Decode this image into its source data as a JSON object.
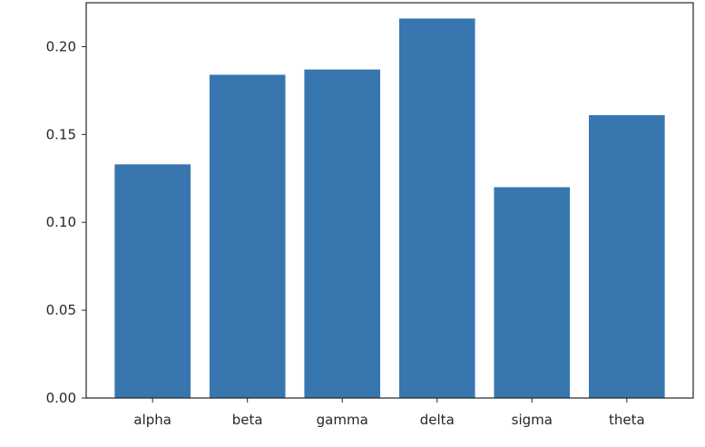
{
  "chart_data": {
    "type": "bar",
    "categories": [
      "alpha",
      "beta",
      "gamma",
      "delta",
      "sigma",
      "theta"
    ],
    "values": [
      0.133,
      0.184,
      0.187,
      0.216,
      0.12,
      0.161
    ],
    "ylim": [
      0,
      0.225
    ],
    "yticks": [
      "0.00",
      "0.05",
      "0.10",
      "0.15",
      "0.20"
    ],
    "title": "",
    "xlabel": "",
    "ylabel": "",
    "grid": false,
    "bar_color": "#3876af",
    "axis_color": "#262626"
  }
}
